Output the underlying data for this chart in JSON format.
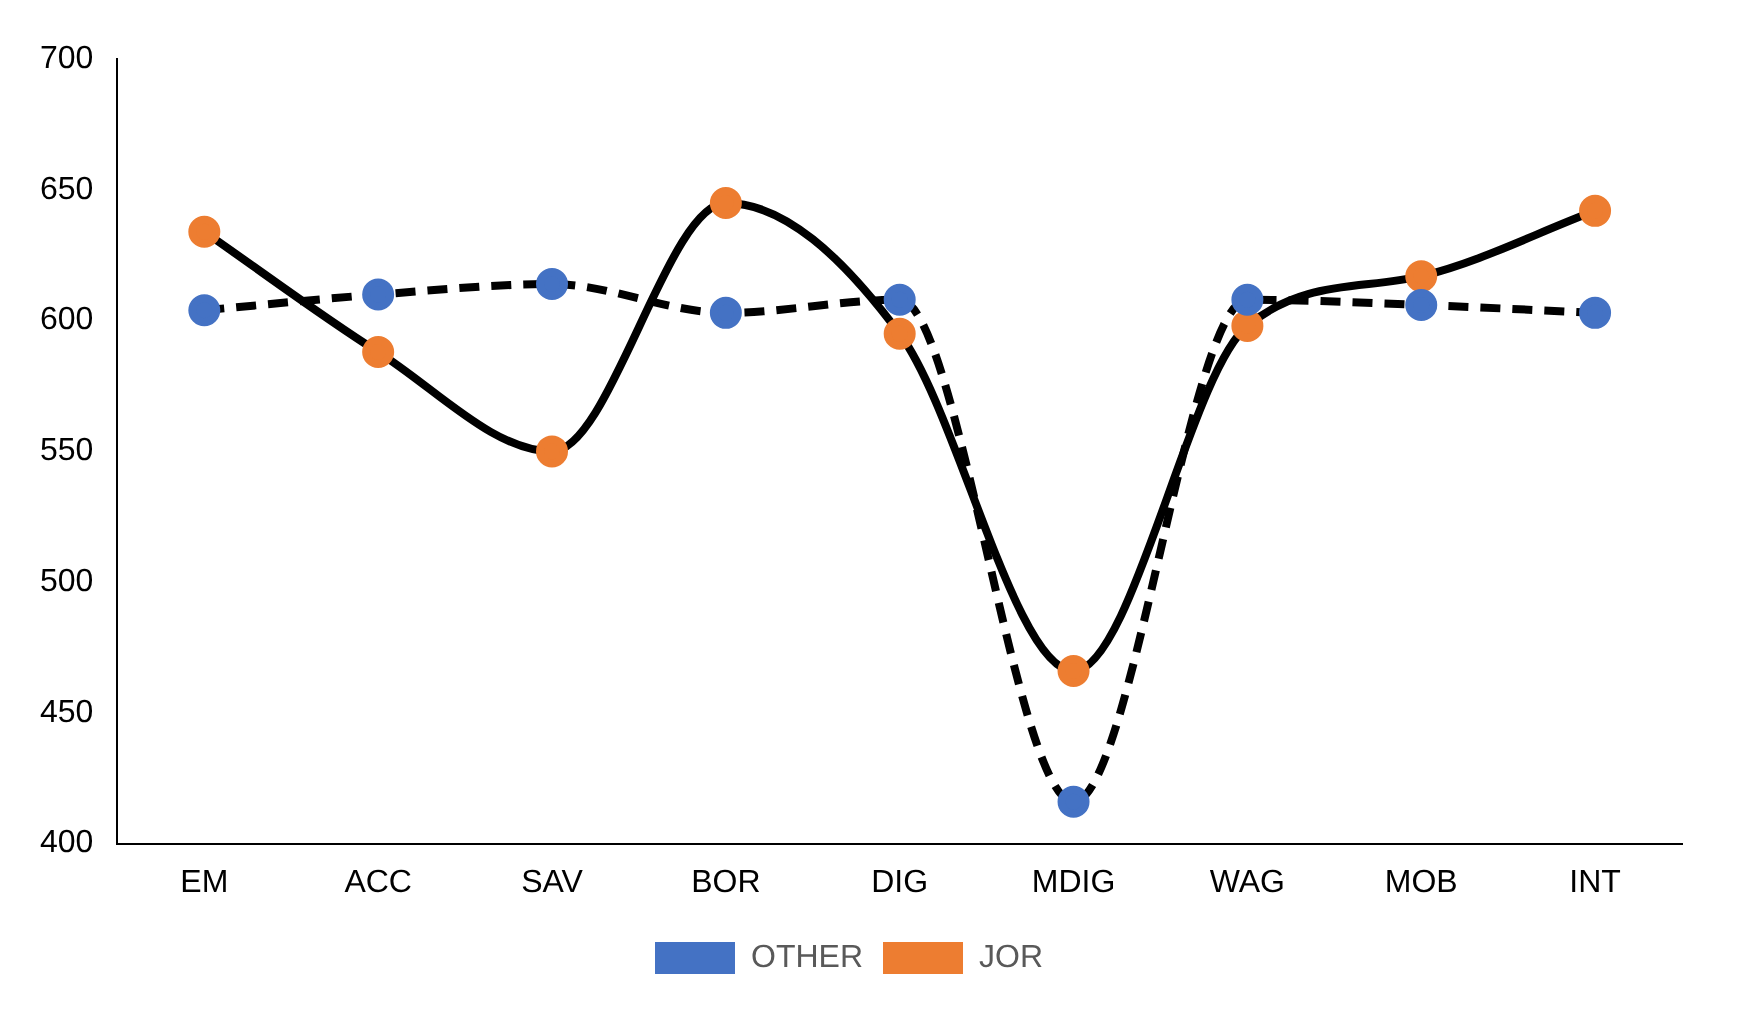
{
  "chart_data": {
    "type": "line",
    "categories": [
      "EM",
      "ACC",
      "SAV",
      "BOR",
      "DIG",
      "MDIG",
      "WAG",
      "MOB",
      "INT"
    ],
    "series": [
      {
        "name": "OTHER",
        "color": "#4472c4",
        "line_style": "dashed",
        "values": [
          604,
          610,
          614,
          603,
          608,
          416,
          608,
          606,
          603
        ]
      },
      {
        "name": "JOR",
        "color": "#ed7d31",
        "line_style": "solid",
        "values": [
          634,
          588,
          550,
          645,
          595,
          466,
          598,
          617,
          642
        ]
      }
    ],
    "ylim": [
      400,
      700
    ],
    "yticks": [
      400,
      450,
      500,
      550,
      600,
      650,
      700
    ],
    "grid": false,
    "legend": "bottom",
    "marker": "circle"
  }
}
